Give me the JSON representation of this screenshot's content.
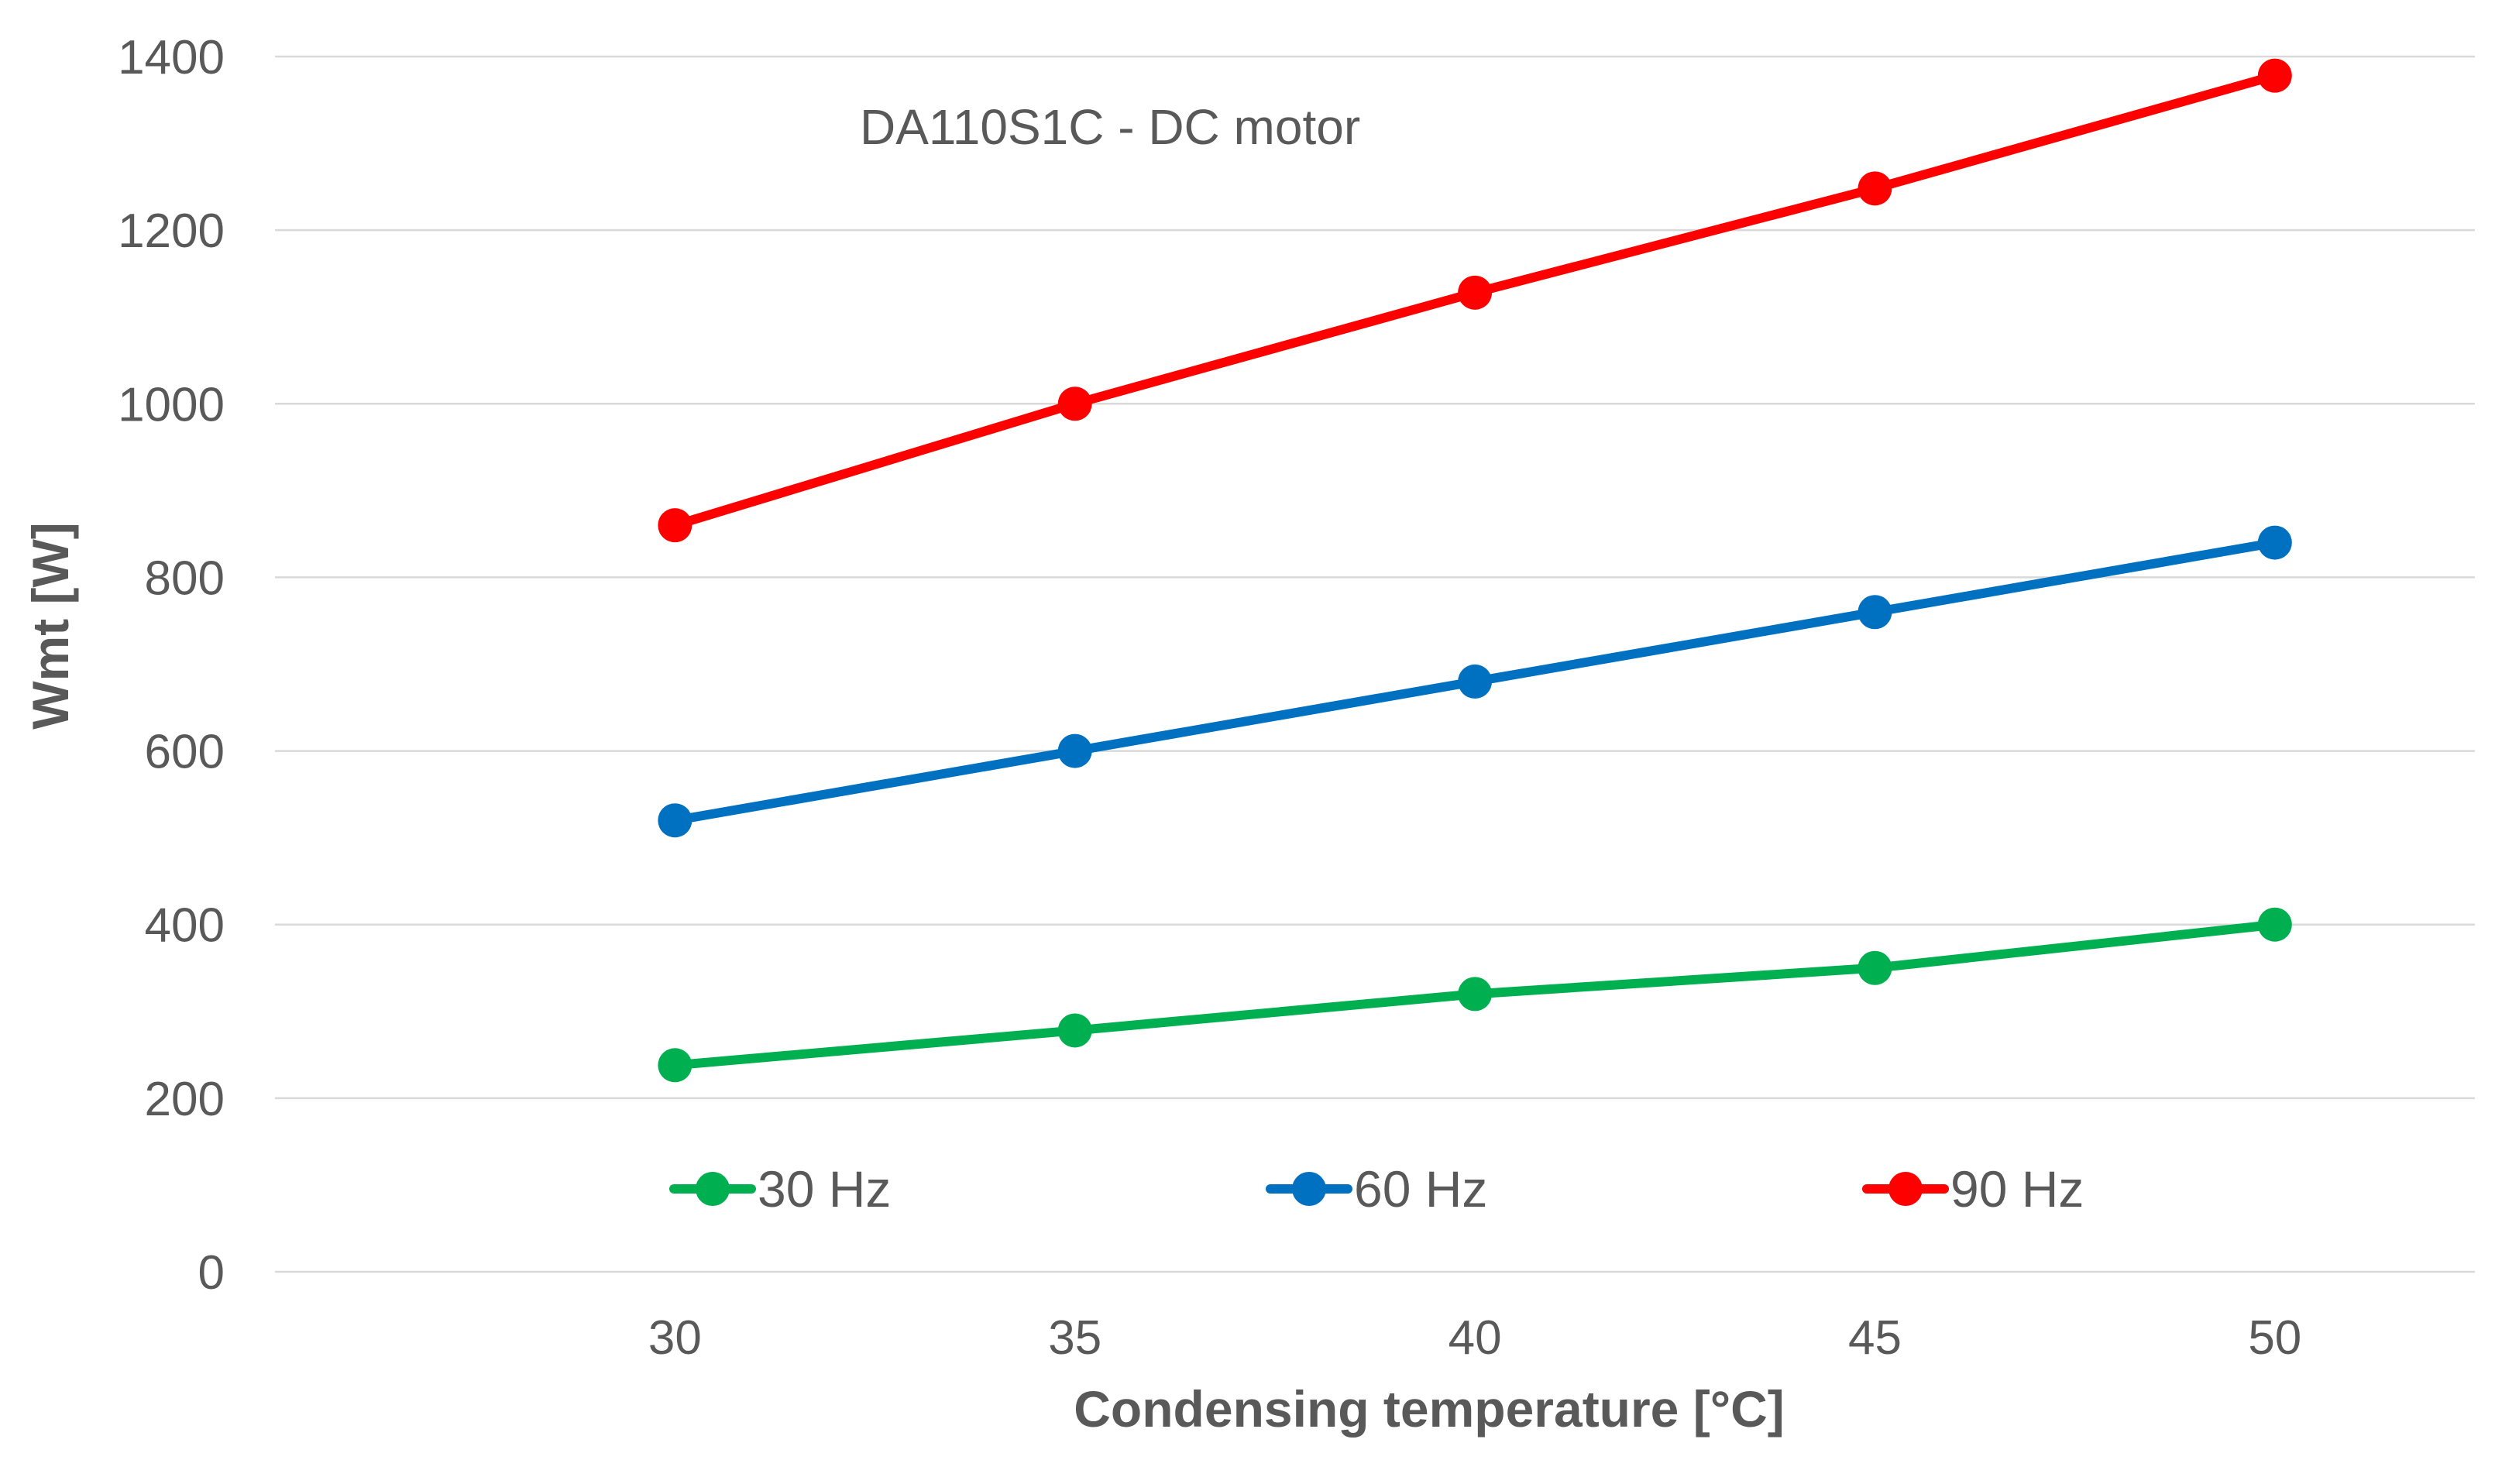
{
  "chart_data": {
    "type": "line",
    "title": "DA110S1C - DC motor",
    "xlabel": "Condensing temperature  [°C]",
    "ylabel": "Wmt  [W]",
    "x": [
      30,
      35,
      40,
      45,
      50
    ],
    "x_ticks": [
      "30",
      "35",
      "40",
      "45",
      "50"
    ],
    "ylim": [
      0,
      1400
    ],
    "y_ticks": [
      "0",
      "200",
      "400",
      "600",
      "800",
      "1000",
      "1200",
      "1400"
    ],
    "grid": true,
    "legend_position": "bottom-inside",
    "series": [
      {
        "name": "30 Hz",
        "color": "#00b050",
        "values": [
          238,
          278,
          320,
          350,
          400
        ]
      },
      {
        "name": "60 Hz",
        "color": "#0070c0",
        "values": [
          520,
          600,
          680,
          760,
          840
        ]
      },
      {
        "name": "90 Hz",
        "color": "#ff0000",
        "values": [
          860,
          1000,
          1128,
          1248,
          1378
        ]
      }
    ]
  }
}
